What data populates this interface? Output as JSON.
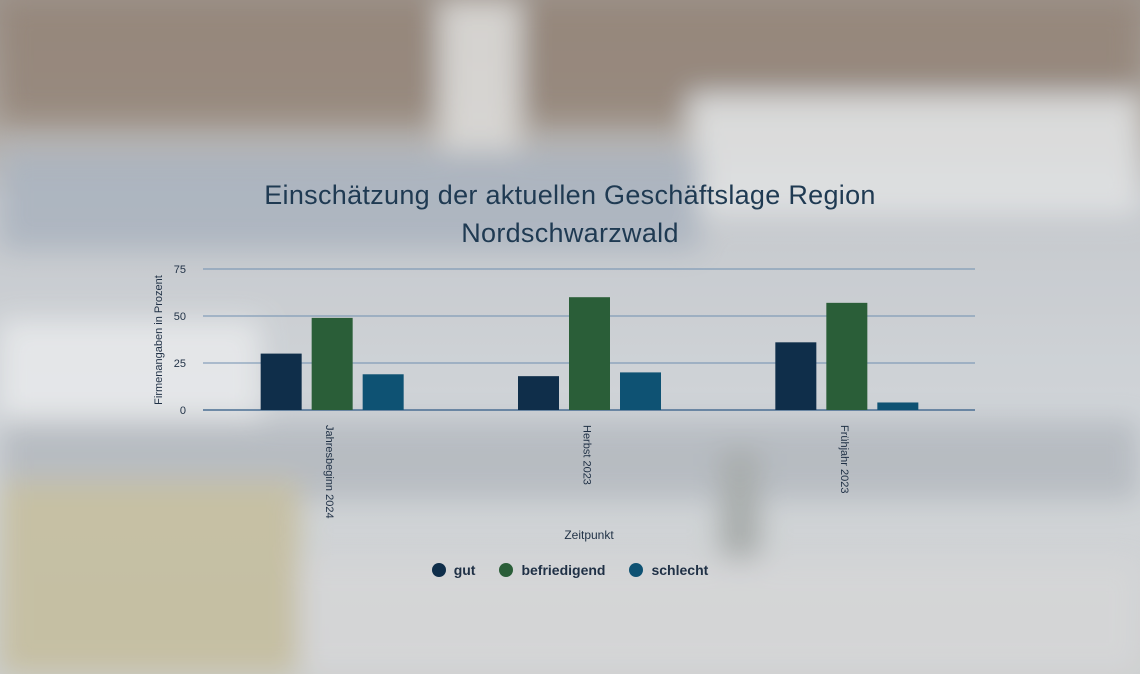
{
  "chart_data": {
    "type": "bar",
    "title_lines": [
      "Einschätzung der aktuellen Geschäftslage Region",
      "Nordschwarzwald"
    ],
    "xlabel": "Zeitpunkt",
    "ylabel": "Firmenangaben in Prozent",
    "categories": [
      "Jahresbeginn 2024",
      "Herbst 2023",
      "Frühjahr 2023"
    ],
    "series": [
      {
        "name": "gut",
        "color": "#0f2e4a",
        "values": [
          30,
          18,
          36
        ]
      },
      {
        "name": "befriedigend",
        "color": "#2a5e38",
        "values": [
          49,
          60,
          57
        ]
      },
      {
        "name": "schlecht",
        "color": "#0e5273",
        "values": [
          19,
          20,
          4
        ]
      }
    ],
    "yticks": [
      "0",
      "25",
      "50",
      "75"
    ],
    "ylim": [
      0,
      75
    ],
    "grid": true,
    "legend_position": "bottom"
  }
}
